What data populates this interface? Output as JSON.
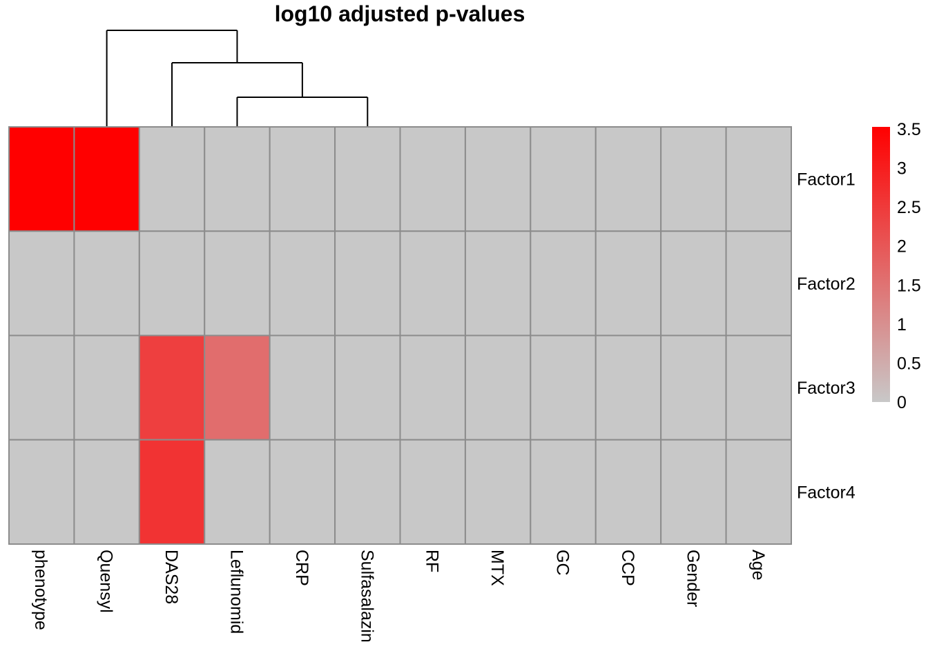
{
  "chart_data": {
    "type": "heatmap",
    "title": "log10 adjusted p-values",
    "columns": [
      "phenotype",
      "Quensyl",
      "DAS28",
      "Leflunomid",
      "CRP",
      "Sulfasalazin",
      "RF",
      "MTX",
      "GC",
      "CCP",
      "Gender",
      "Age"
    ],
    "rows": [
      "Factor1",
      "Factor2",
      "Factor3",
      "Factor4"
    ],
    "values": [
      [
        3.5,
        3.5,
        0,
        0,
        0,
        0,
        0,
        0,
        0,
        0,
        0,
        0
      ],
      [
        0,
        0,
        0,
        0,
        0,
        0,
        0,
        0,
        0,
        0,
        0,
        0
      ],
      [
        0,
        0,
        2.4,
        1.6,
        0,
        0,
        0,
        0,
        0,
        0,
        0,
        0
      ],
      [
        0,
        0,
        2.6,
        0,
        0,
        0,
        0,
        0,
        0,
        0,
        0,
        0
      ]
    ],
    "color_scale": {
      "min": 0,
      "max": 3.5,
      "low_color": "#c8c8c8",
      "high_color": "#ff0000"
    },
    "legend": {
      "placement": "right",
      "ticks": [
        "0",
        "0.5",
        "1",
        "1.5",
        "2",
        "2.5",
        "3",
        "3.5"
      ]
    },
    "dendrogram": "columns"
  }
}
